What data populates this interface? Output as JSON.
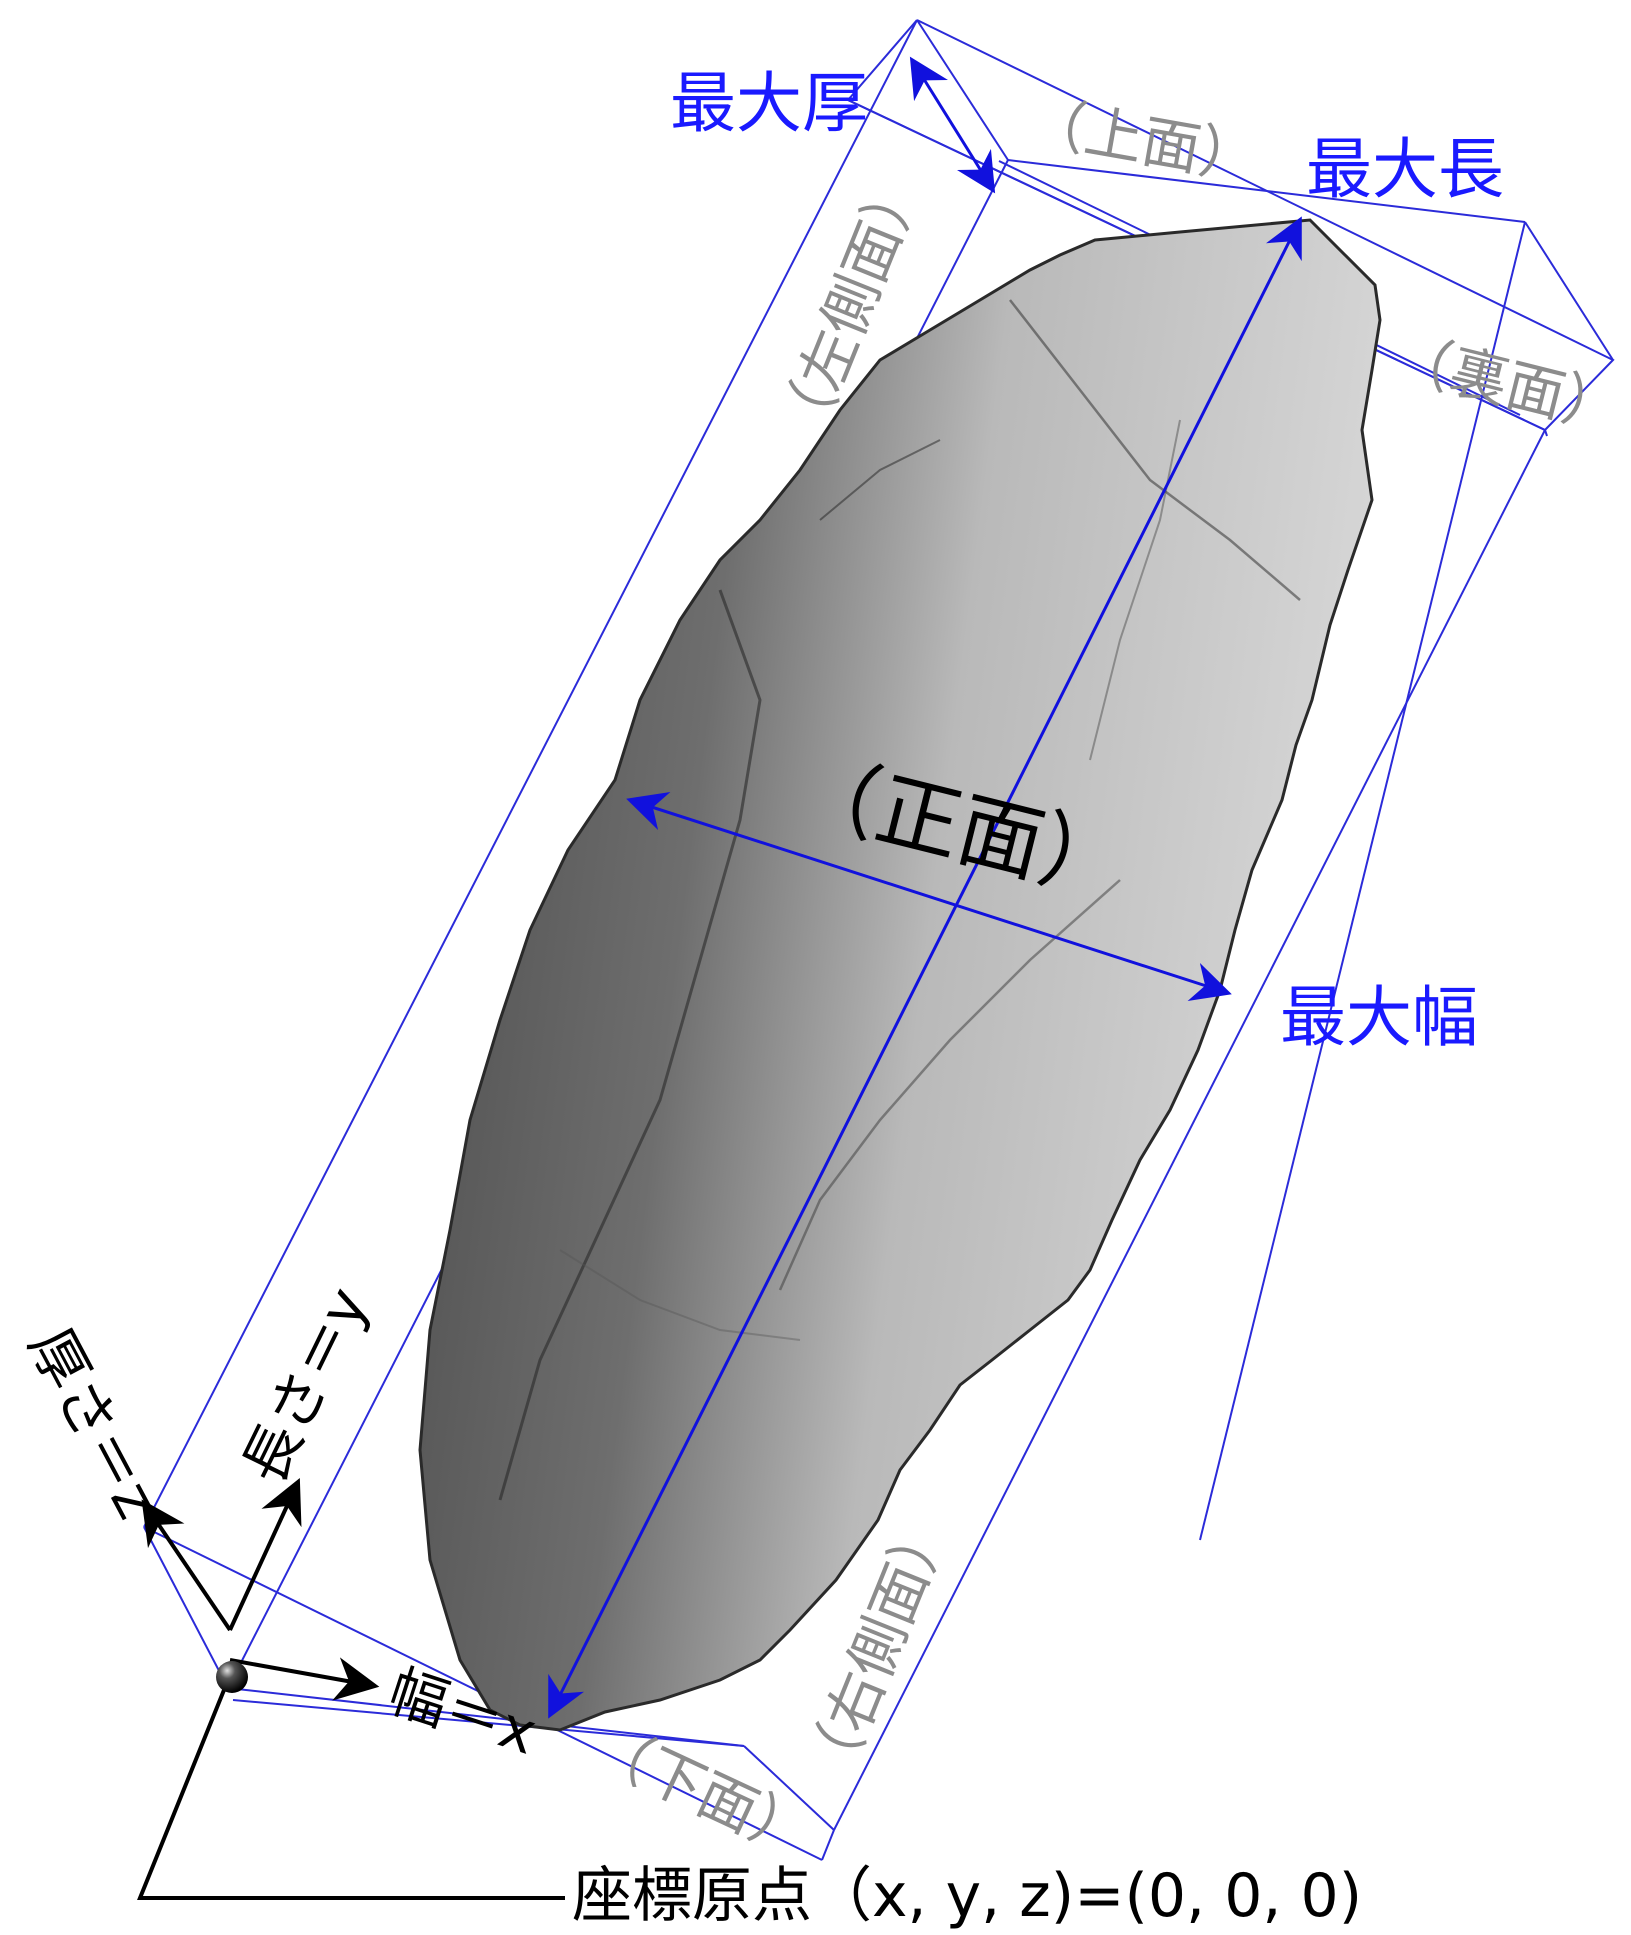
{
  "labels": {
    "max_thickness": "最大厚",
    "max_length": "最大長",
    "max_width": "最大幅",
    "top_face": "（上面）",
    "back_face": "（裏面）",
    "left_side_face": "（左側面）",
    "right_side_face": "（右側面）",
    "bottom_face": "（下面）",
    "front_face": "（正面）",
    "thickness_axis": "厚さ＝z",
    "length_axis": "長さ＝y",
    "width_axis": "幅＝x",
    "origin": "座標原点（x, y, z)=(0, 0, 0)"
  },
  "colors": {
    "dimension_blue": "#1a1aff",
    "face_label_gray": "#8c8c8c",
    "axis_black": "#000000"
  },
  "icons": {
    "origin_marker": "black-sphere-icon"
  }
}
